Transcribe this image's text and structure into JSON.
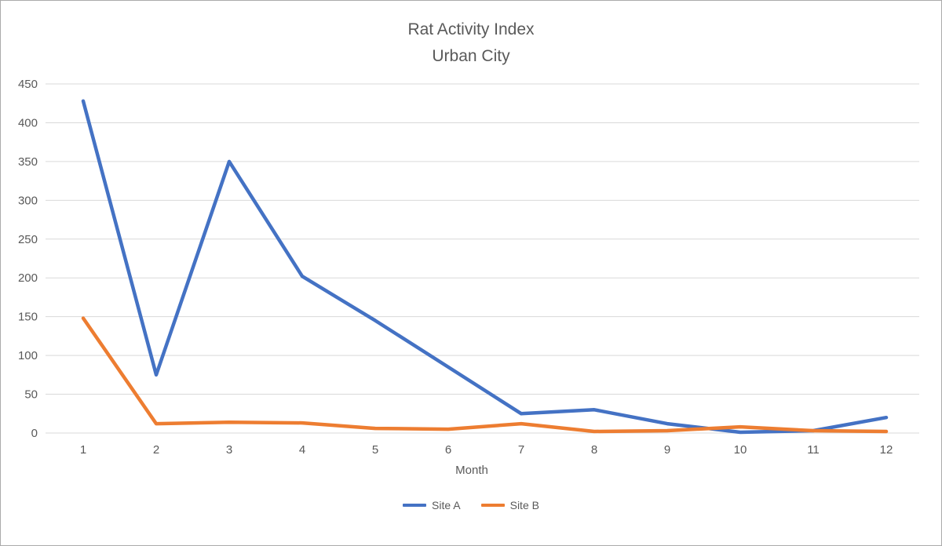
{
  "chart_data": {
    "type": "line",
    "title_line1": "Rat Activity Index",
    "title_line2": "Urban City",
    "xlabel": "Month",
    "ylabel": "",
    "categories": [
      "1",
      "2",
      "3",
      "4",
      "5",
      "6",
      "7",
      "8",
      "9",
      "10",
      "11",
      "12"
    ],
    "y_ticks": [
      0,
      50,
      100,
      150,
      200,
      250,
      300,
      350,
      400,
      450
    ],
    "ylim": [
      0,
      450
    ],
    "grid": true,
    "legend_position": "bottom",
    "colors": {
      "gridline": "#d9d9d9",
      "axis_text": "#595959"
    },
    "series": [
      {
        "name": "Site A",
        "color": "#4472c4",
        "values": [
          428,
          75,
          350,
          202,
          145,
          85,
          25,
          30,
          12,
          1,
          3,
          20
        ]
      },
      {
        "name": "Site B",
        "color": "#ed7d31",
        "values": [
          148,
          12,
          14,
          13,
          6,
          5,
          12,
          2,
          3,
          8,
          3,
          2
        ]
      }
    ]
  }
}
